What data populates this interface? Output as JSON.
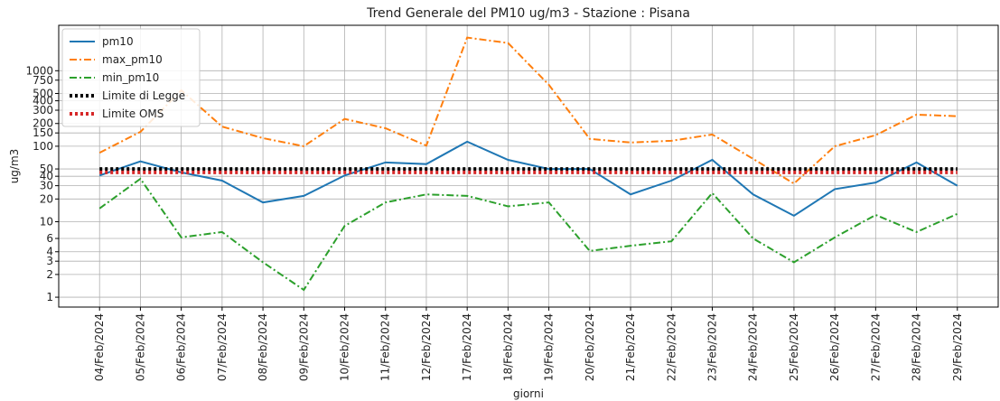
{
  "chart_data": {
    "type": "line",
    "title": "Trend Generale del PM10 ug/m3 - Stazione : Pisana",
    "xlabel": "giorni",
    "ylabel": "ug/m3",
    "categories": [
      "04/Feb/2024",
      "05/Feb/2024",
      "06/Feb/2024",
      "07/Feb/2024",
      "08/Feb/2024",
      "09/Feb/2024",
      "10/Feb/2024",
      "11/Feb/2024",
      "12/Feb/2024",
      "17/Feb/2024",
      "18/Feb/2024",
      "19/Feb/2024",
      "20/Feb/2024",
      "21/Feb/2024",
      "22/Feb/2024",
      "23/Feb/2024",
      "24/Feb/2024",
      "25/Feb/2024",
      "26/Feb/2024",
      "27/Feb/2024",
      "28/Feb/2024",
      "29/Feb/2024"
    ],
    "series": [
      {
        "name": "pm10",
        "color": "#1f77b4",
        "linestyle": "solid",
        "values": [
          41,
          63,
          45,
          35,
          18,
          22,
          41,
          61,
          58,
          115,
          66,
          50,
          50,
          23,
          35,
          66,
          23,
          12,
          27,
          33,
          61,
          30
        ]
      },
      {
        "name": "max_pm10",
        "color": "#ff7f0e",
        "linestyle": "dashdot",
        "values": [
          82,
          155,
          550,
          182,
          128,
          100,
          230,
          173,
          102,
          2750,
          2330,
          650,
          125,
          112,
          118,
          143,
          68,
          32,
          100,
          140,
          262,
          250
        ]
      },
      {
        "name": "min_pm10",
        "color": "#2ca02c",
        "linestyle": "dashdot",
        "values": [
          15,
          37,
          6.2,
          7.3,
          2.9,
          1.25,
          8.8,
          18,
          23,
          22,
          16,
          18,
          4.1,
          4.8,
          5.5,
          24,
          6,
          2.9,
          6.2,
          12.3,
          7.3,
          12.7
        ]
      },
      {
        "name": "Limite di Legge",
        "color": "#000000",
        "linestyle": "dotted",
        "values": [
          50,
          50,
          50,
          50,
          50,
          50,
          50,
          50,
          50,
          50,
          50,
          50,
          50,
          50,
          50,
          50,
          50,
          50,
          50,
          50,
          50,
          50
        ]
      },
      {
        "name": "Limite OMS",
        "color": "#d62728",
        "linestyle": "dotted",
        "values": [
          45,
          45,
          45,
          45,
          45,
          45,
          45,
          45,
          45,
          45,
          45,
          45,
          45,
          45,
          45,
          45,
          45,
          45,
          45,
          45,
          45,
          45
        ]
      }
    ],
    "log_y": true,
    "ylim": [
      0.74,
      4000
    ],
    "yticks": [
      1,
      2,
      3,
      4,
      6,
      10,
      20,
      30,
      40,
      50,
      100,
      150,
      200,
      300,
      400,
      500,
      750,
      1000
    ],
    "grid": true,
    "legend": "upper left"
  }
}
